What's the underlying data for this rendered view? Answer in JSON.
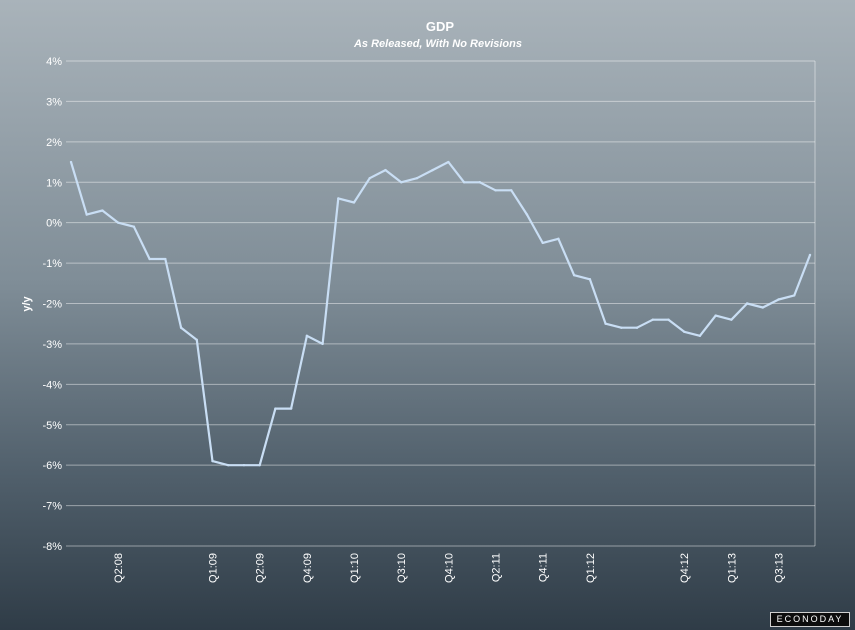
{
  "chart_data": {
    "type": "line",
    "title": "GDP",
    "subtitle": "As Released, With No Revisions",
    "xlabel": "",
    "ylabel": "y/y",
    "ylim": [
      -8,
      4
    ],
    "y_ticks": [
      "4%",
      "3%",
      "2%",
      "1%",
      "0%",
      "-1%",
      "-2%",
      "-3%",
      "-4%",
      "-5%",
      "-6%",
      "-7%",
      "-8%"
    ],
    "grid": true,
    "line_color": "#c9def4",
    "x_tick_labels": [
      {
        "label": "Q2:08",
        "index": 3
      },
      {
        "label": "Q1:09",
        "index": 9
      },
      {
        "label": "Q2:09",
        "index": 12
      },
      {
        "label": "Q4:09",
        "index": 15
      },
      {
        "label": "Q1:10",
        "index": 18
      },
      {
        "label": "Q3:10",
        "index": 21
      },
      {
        "label": "Q4:10",
        "index": 24
      },
      {
        "label": "Q2:11",
        "index": 27
      },
      {
        "label": "Q4:11",
        "index": 30
      },
      {
        "label": "Q1:12",
        "index": 33
      },
      {
        "label": "Q4:12",
        "index": 39
      },
      {
        "label": "Q1:13",
        "index": 42
      },
      {
        "label": "Q3:13",
        "index": 45
      }
    ],
    "series": [
      {
        "values": [
          1.5,
          0.2,
          0.3,
          0.0,
          -0.1,
          -0.9,
          -0.9,
          -2.6,
          -2.9,
          -5.9,
          -6.0,
          -6.0,
          -6.0,
          -4.6,
          -4.6,
          -2.8,
          -3.0,
          0.6,
          0.5,
          1.1,
          1.3,
          1.0,
          1.1,
          1.3,
          1.5,
          1.0,
          1.0,
          0.8,
          0.8,
          0.2,
          -0.5,
          -0.4,
          -1.3,
          -1.4,
          -2.5,
          -2.6,
          -2.6,
          -2.4,
          -2.4,
          -2.7,
          -2.8,
          -2.3,
          -2.4,
          -2.0,
          -2.1,
          -1.9,
          -1.8,
          -0.8
        ]
      }
    ]
  },
  "branding": {
    "logo_text": "ECONODAY"
  }
}
